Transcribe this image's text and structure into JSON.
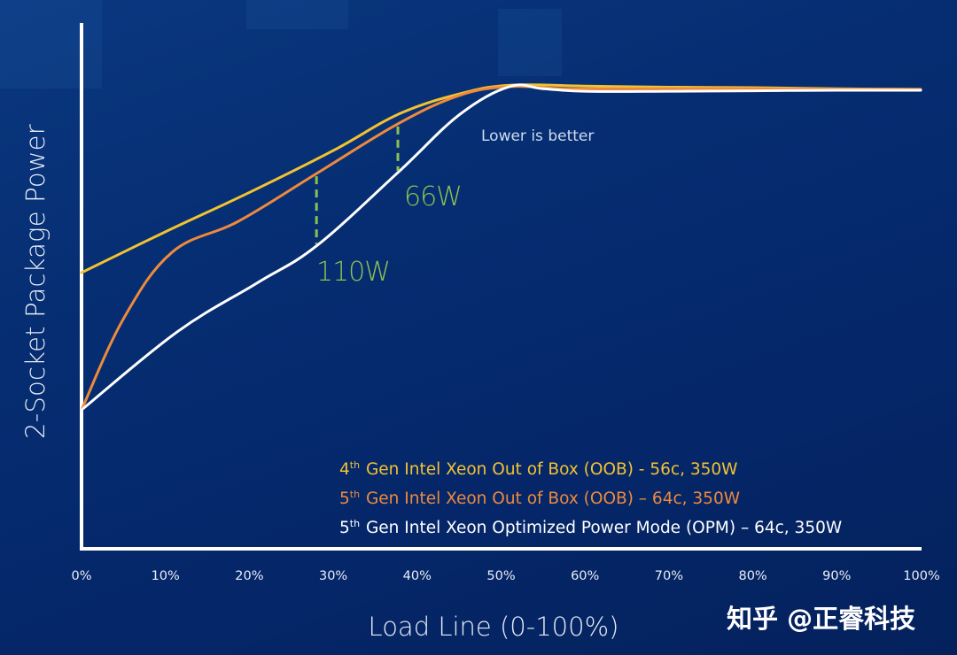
{
  "chart_data": {
    "type": "line",
    "title": "",
    "xlabel": "Load Line (0-100%)",
    "ylabel": "2-Socket Package Power",
    "x_ticks": [
      "0%",
      "10%",
      "20%",
      "30%",
      "40%",
      "50%",
      "60%",
      "70%",
      "80%",
      "90%",
      "100%"
    ],
    "xlim": [
      0,
      100
    ],
    "ylim": [
      0,
      100
    ],
    "y_units": "relative (no tick labels shown)",
    "grid": false,
    "legend_position": "lower-right inside plot",
    "series": [
      {
        "name": "4th Gen Intel Xeon  Out of Box (OOB) - 56c, 350W",
        "color": "#f2c230",
        "points": [
          [
            0,
            52.7
          ],
          [
            10,
            60.5
          ],
          [
            20,
            68.0
          ],
          [
            30,
            76.0
          ],
          [
            38,
            83.1
          ],
          [
            45.5,
            87.0
          ],
          [
            51.3,
            88.5
          ],
          [
            60,
            88.3
          ],
          [
            70,
            88.1
          ],
          [
            80,
            88.0
          ],
          [
            90,
            87.8
          ],
          [
            100,
            87.7
          ]
        ]
      },
      {
        "name": "5th Gen Intel Xeon Out of Box (OOB) – 64c, 350W",
        "color": "#ee8a3c",
        "points": [
          [
            0,
            26.5
          ],
          [
            5,
            43.9
          ],
          [
            10.8,
            56.6
          ],
          [
            18.7,
            62.5
          ],
          [
            28,
            71.6
          ],
          [
            37.7,
            81.1
          ],
          [
            45,
            86.5
          ],
          [
            51,
            88.2
          ],
          [
            58,
            87.8
          ],
          [
            70,
            87.8
          ],
          [
            80,
            87.8
          ],
          [
            90,
            87.7
          ],
          [
            100,
            87.7
          ]
        ]
      },
      {
        "name": "5th Gen Intel Xeon Optimized Power Mode (OPM) – 64c, 350W",
        "color": "#ffffff",
        "points": [
          [
            0,
            26.5
          ],
          [
            11.4,
            41.4
          ],
          [
            20.9,
            50.7
          ],
          [
            28,
            57.8
          ],
          [
            37.7,
            71.8
          ],
          [
            45,
            82.8
          ],
          [
            51,
            88.2
          ],
          [
            55,
            87.8
          ],
          [
            60,
            87.3
          ],
          [
            70,
            87.3
          ],
          [
            80,
            87.4
          ],
          [
            90,
            87.5
          ],
          [
            100,
            87.5
          ]
        ]
      }
    ],
    "annotations": [
      {
        "text": "110W",
        "x": 28,
        "from_series": "5th Gen Intel Xeon Out of Box (OOB) – 64c, 350W",
        "to_series": "5th Gen Intel Xeon Optimized Power Mode (OPM) – 64c, 350W",
        "color": "#8cc152"
      },
      {
        "text": "66W",
        "x": 37.7,
        "from_series": "5th Gen Intel Xeon Out of Box (OOB) – 64c, 350W",
        "to_series": "5th Gen Intel Xeon Optimized Power Mode (OPM) – 64c, 350W",
        "color": "#8cc152"
      },
      {
        "text": "Lower is better",
        "x": 48,
        "y": 80
      }
    ]
  },
  "legend": [
    {
      "sup": "th",
      "prefix": "4",
      "text": " Gen Intel Xeon  Out of Box (OOB) - 56c, 350W",
      "color": "#f2c230"
    },
    {
      "sup": "th",
      "prefix": "5",
      "text": " Gen Intel Xeon Out of Box (OOB) – 64c, 350W",
      "color": "#ee8a3c"
    },
    {
      "sup": "th",
      "prefix": "5",
      "text": " Gen Intel Xeon Optimized Power Mode (OPM) – 64c, 350W",
      "color": "#ffffff"
    }
  ],
  "labels": {
    "note": "Lower is better",
    "delta_1": "110W",
    "delta_2": "66W",
    "watermark": "知乎 @正睿科技"
  },
  "colors": {
    "axis": "#ffffff",
    "delta": "#8cc152"
  }
}
